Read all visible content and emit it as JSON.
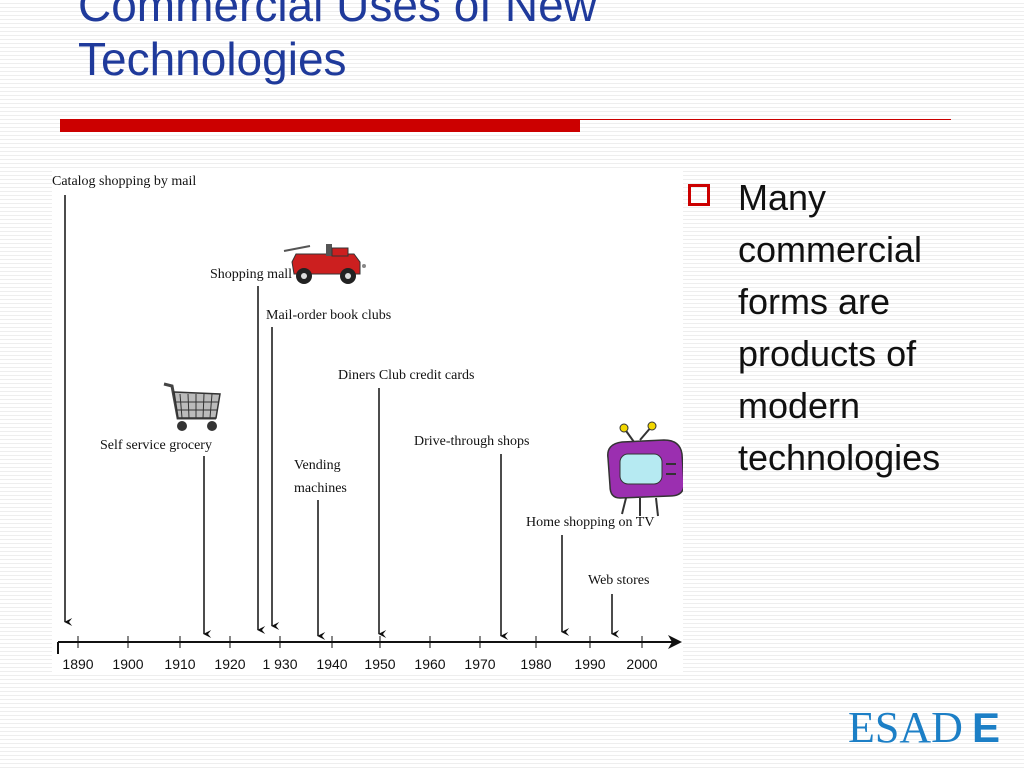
{
  "slide": {
    "title_lines": [
      "Commercial Uses of New",
      "Technologies"
    ],
    "bullet": {
      "icon": "hollow-square-bullet",
      "lines": [
        "Many",
        "commercial",
        "forms are",
        "products of",
        "modern",
        "technologies"
      ]
    },
    "logo": {
      "prefix": "ESAD",
      "suffix": "E"
    },
    "colors": {
      "title": "#1f3a9b",
      "accent_red": "#cc0000",
      "logo_blue": "#1c7fc6"
    }
  },
  "timeline": {
    "years": [
      "1890",
      "1900",
      "1910",
      "1920",
      "1 930",
      "1940",
      "1950",
      "1960",
      "1970",
      "1980",
      "1990",
      "2000"
    ],
    "events": [
      {
        "label_lines": [
          "Catalog shopping by mail"
        ],
        "year": 1888
      },
      {
        "label_lines": [
          "Self service grocery"
        ],
        "year": 1915
      },
      {
        "label_lines": [
          "Shopping mall"
        ],
        "year": 1925
      },
      {
        "label_lines": [
          "Mail-order book clubs"
        ],
        "year": 1927
      },
      {
        "label_lines": [
          "Vending",
          "machines"
        ],
        "year": 1937
      },
      {
        "label_lines": [
          "Diners Club credit cards"
        ],
        "year": 1949
      },
      {
        "label_lines": [
          "Drive-through shops"
        ],
        "year": 1973
      },
      {
        "label_lines": [
          "Home shopping on TV"
        ],
        "year": 1985
      },
      {
        "label_lines": [
          "Web stores"
        ],
        "year": 1994
      }
    ],
    "clipart": [
      "car-icon",
      "shopping-cart-icon",
      "television-icon"
    ]
  }
}
